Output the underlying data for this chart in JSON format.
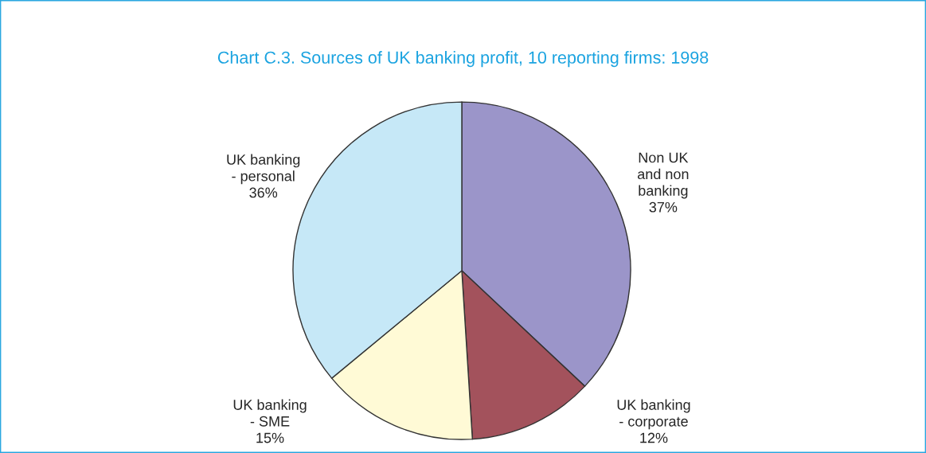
{
  "chart_data": {
    "type": "pie",
    "title": "Chart C.3. Sources of UK banking profit, 10 reporting firms: 1998",
    "categories": [
      "Non UK\nand non\nbanking",
      "UK banking\n- corporate",
      "UK banking\n- SME",
      "UK banking\n- personal"
    ],
    "values": [
      37,
      12,
      15,
      36
    ],
    "value_labels": [
      "37%",
      "12%",
      "15%",
      "36%"
    ],
    "colors": [
      "#9b95c9",
      "#a3525c",
      "#fffad6",
      "#c6e8f7"
    ]
  }
}
